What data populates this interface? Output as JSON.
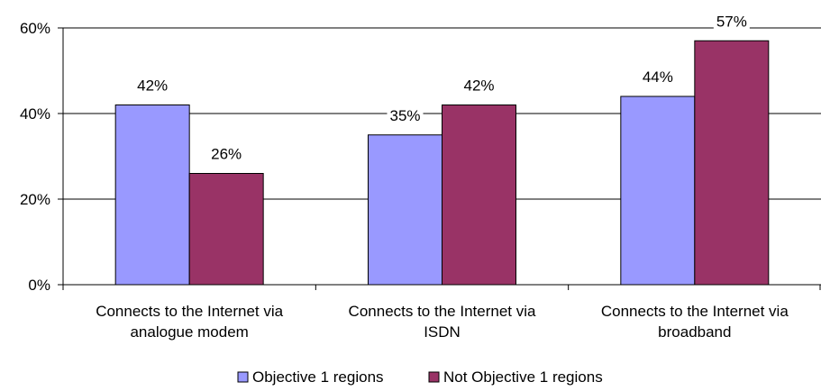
{
  "chart_data": {
    "type": "bar",
    "categories": [
      [
        "Connects to the Internet via",
        "analogue modem"
      ],
      [
        "Connects to the Internet via",
        "ISDN"
      ],
      [
        "Connects to the Internet via",
        "broadband"
      ]
    ],
    "series": [
      {
        "name": "Objective 1 regions",
        "values": [
          42,
          35,
          44
        ],
        "labels": [
          "42%",
          "35%",
          "44%"
        ],
        "color": "#9999ff"
      },
      {
        "name": "Not Objective 1 regions",
        "values": [
          26,
          42,
          57
        ],
        "labels": [
          "26%",
          "42%",
          "57%"
        ],
        "color": "#993366"
      }
    ],
    "ylim": [
      0,
      60
    ],
    "yticks": [
      0,
      20,
      40,
      60
    ],
    "ytick_labels": [
      "0%",
      "20%",
      "40%",
      "60%"
    ],
    "grid": true,
    "legend_position": "bottom"
  }
}
